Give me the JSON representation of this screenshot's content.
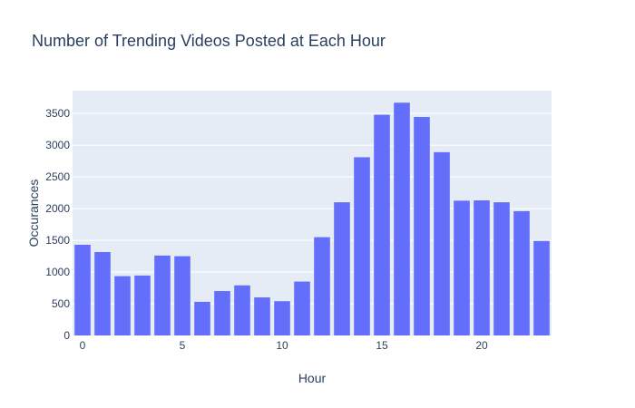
{
  "chart_data": {
    "type": "bar",
    "title": "Number of Trending Videos Posted at Each Hour",
    "xlabel": "Hour",
    "ylabel": "Occurances",
    "x": [
      0,
      1,
      2,
      3,
      4,
      5,
      6,
      7,
      8,
      9,
      10,
      11,
      12,
      13,
      14,
      15,
      16,
      17,
      18,
      19,
      20,
      21,
      22,
      23
    ],
    "values": [
      1430,
      1315,
      935,
      945,
      1260,
      1250,
      530,
      700,
      790,
      600,
      540,
      850,
      1550,
      2100,
      2810,
      3480,
      3670,
      3445,
      2890,
      2125,
      2130,
      2100,
      1960,
      1490
    ],
    "xlim": [
      -0.5,
      23.5
    ],
    "ylim": [
      0,
      3860
    ],
    "xticks": [
      0,
      5,
      10,
      15,
      20
    ],
    "yticks": [
      0,
      500,
      1000,
      1500,
      2000,
      2500,
      3000,
      3500
    ],
    "grid": true,
    "bar_color": "#636efa",
    "plot_background": "#e5ecf6",
    "grid_color": "#ffffff"
  }
}
